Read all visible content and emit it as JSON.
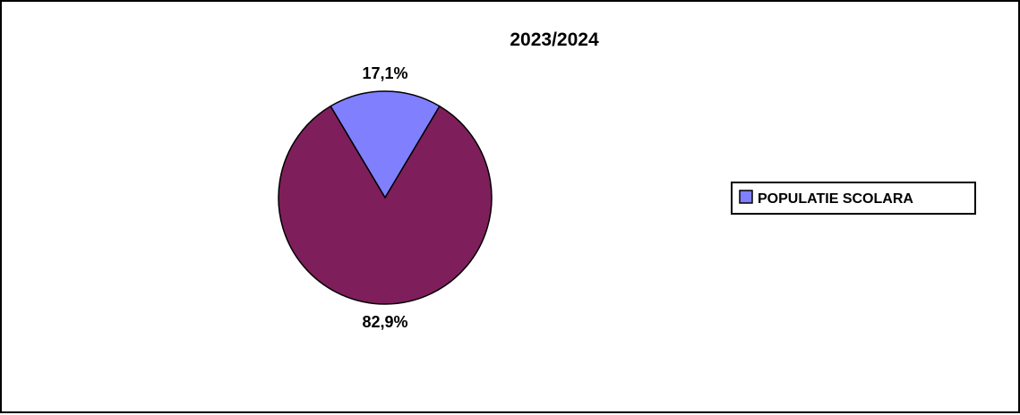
{
  "chart_data": {
    "type": "pie",
    "title": "2023/2024",
    "categories": [
      "POPULATIE SCOLARA",
      ""
    ],
    "values": [
      17.1,
      82.9
    ],
    "data_labels": [
      "17,1%",
      "82,9%"
    ],
    "colors": [
      "#8080FF",
      "#7E1F5B"
    ],
    "legend": {
      "placement": "right",
      "entries": [
        "POPULATIE SCOLARA"
      ]
    }
  }
}
